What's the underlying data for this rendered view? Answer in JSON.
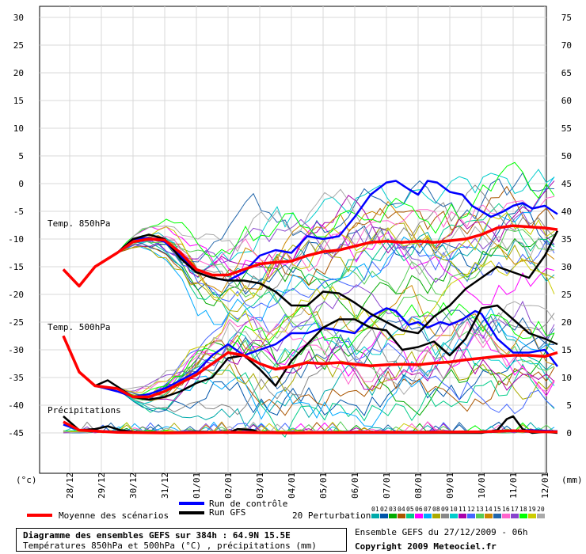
{
  "chart_data": {
    "type": "line",
    "left_axis": {
      "unit_label": "(°c)",
      "ticks": [
        30,
        25,
        20,
        15,
        10,
        5,
        0,
        -5,
        -10,
        -15,
        -20,
        -25,
        -30,
        -35,
        -40,
        -45
      ],
      "ylim": [
        -49,
        33
      ]
    },
    "right_axis": {
      "unit_label": "(mm)",
      "ticks": [
        75,
        70,
        65,
        60,
        55,
        50,
        45,
        40,
        35,
        30,
        25,
        20,
        15,
        10,
        5,
        0
      ]
    },
    "x_ticks": [
      "28/12",
      "29/12",
      "30/12",
      "31/12",
      "01/01",
      "02/01",
      "03/01",
      "04/01",
      "05/01",
      "06/01",
      "07/01",
      "08/01",
      "09/01",
      "10/01",
      "11/01",
      "12/01"
    ],
    "x_day_range": [
      0,
      16
    ],
    "grid": true,
    "panel_labels": {
      "t850": "Temp. 850hPa",
      "t500": "Temp. 500hPa",
      "precip": "Précipitations"
    },
    "series": [
      {
        "name": "Run de contrôle",
        "color": "#0000ff",
        "panel": "t850",
        "x": [
          -0.2,
          0.3,
          0.8,
          1.5,
          2.0,
          2.5,
          3.0,
          3.5,
          4.0,
          4.5,
          5.0,
          5.5,
          6.0,
          6.5,
          7.0,
          7.5,
          8.0,
          8.5,
          9.0,
          9.5,
          10.0,
          10.3,
          10.7,
          11.0,
          11.3,
          11.6,
          12.0,
          12.4,
          12.7,
          13.0,
          13.3,
          13.7,
          14.0,
          14.3,
          14.6,
          15.0,
          15.4
        ],
        "y": [
          -15.5,
          -18.5,
          -15,
          -12.5,
          -10,
          -9.8,
          -10.5,
          -13,
          -16,
          -17,
          -17.5,
          -16,
          -13,
          -12,
          -12.5,
          -9.5,
          -10,
          -9.5,
          -6,
          -2,
          0.2,
          0.5,
          -1,
          -2,
          0.5,
          0.2,
          -1.5,
          -2,
          -4,
          -5,
          -6,
          -5,
          -4,
          -3.5,
          -4.5,
          -4,
          -5.5
        ]
      },
      {
        "name": "Run GFS",
        "color": "#000000",
        "panel": "t850",
        "x": [
          -0.2,
          0.3,
          0.8,
          1.5,
          2.0,
          2.5,
          3.0,
          3.5,
          4.0,
          4.5,
          5.0,
          5.5,
          6.0,
          6.5,
          7.0,
          7.5,
          8.0,
          8.5,
          9.0,
          9.5,
          10.0,
          10.5,
          11.0,
          11.5,
          12.0,
          12.5,
          13.0,
          13.5,
          14.0,
          14.5,
          15.0,
          15.4
        ],
        "y": [
          -15.5,
          -18.5,
          -15,
          -12.5,
          -10,
          -9.2,
          -10,
          -13.5,
          -16,
          -17,
          -17.5,
          -17.5,
          -18,
          -19.5,
          -22,
          -22,
          -19.5,
          -19.8,
          -21.5,
          -23.5,
          -25,
          -26.5,
          -27,
          -24,
          -22,
          -19,
          -17,
          -15,
          -16,
          -17,
          -13,
          -8.5
        ]
      },
      {
        "name": "Moyenne des scénarios",
        "color": "#ff0000",
        "panel": "t850",
        "x": [
          -0.2,
          0.3,
          0.8,
          1.5,
          2.0,
          2.5,
          3.0,
          3.5,
          4.0,
          4.5,
          5.0,
          5.5,
          6.0,
          6.5,
          7.0,
          7.5,
          8.0,
          8.5,
          9.0,
          9.5,
          10.0,
          10.5,
          11.0,
          11.5,
          12.0,
          12.5,
          13.0,
          13.5,
          14.0,
          14.5,
          15.0,
          15.4
        ],
        "y": [
          -15.5,
          -18.5,
          -15,
          -12.5,
          -10.5,
          -10,
          -10.2,
          -12.5,
          -15.5,
          -16.5,
          -16.5,
          -15.5,
          -14.5,
          -14.2,
          -14,
          -13,
          -12.3,
          -12,
          -11.3,
          -10.6,
          -10.4,
          -10.6,
          -10.4,
          -10.6,
          -10.3,
          -10,
          -9.2,
          -8,
          -7.6,
          -7.8,
          -8,
          -8.3
        ]
      },
      {
        "name": "Run de contrôle",
        "color": "#0000ff",
        "panel": "t500",
        "x": [
          -0.2,
          0.3,
          0.8,
          1.5,
          2.0,
          2.5,
          3.0,
          3.5,
          4.0,
          4.5,
          5.0,
          5.5,
          6.0,
          6.5,
          7.0,
          7.5,
          8.0,
          8.5,
          9.0,
          9.5,
          10.0,
          10.3,
          10.7,
          11.0,
          11.3,
          11.7,
          12.0,
          12.4,
          12.8,
          13.0,
          13.5,
          14.0,
          14.5,
          15.0,
          15.4
        ],
        "y": [
          -27.5,
          -34,
          -36.5,
          -37.5,
          -38.5,
          -38,
          -37,
          -35.5,
          -34,
          -31,
          -29,
          -31,
          -30,
          -29,
          -27,
          -27,
          -26,
          -26.5,
          -27,
          -24,
          -22.5,
          -23,
          -25.5,
          -25,
          -26,
          -25,
          -25.5,
          -24.5,
          -23,
          -23.5,
          -28,
          -30.5,
          -30.5,
          -30,
          -33
        ]
      },
      {
        "name": "Run GFS",
        "color": "#000000",
        "panel": "t500",
        "x": [
          -0.2,
          0.3,
          0.8,
          1.2,
          1.6,
          2.0,
          2.5,
          3.0,
          3.5,
          4.0,
          4.5,
          5.0,
          5.5,
          6.0,
          6.5,
          7.0,
          7.5,
          8.0,
          8.5,
          9.0,
          9.5,
          10.0,
          10.5,
          11.0,
          11.5,
          12.0,
          12.5,
          13.0,
          13.5,
          14.0,
          14.5,
          15.0,
          15.4
        ],
        "y": [
          -27.5,
          -34,
          -36.5,
          -35.5,
          -37,
          -38.5,
          -39,
          -38.5,
          -37.5,
          -36,
          -35,
          -31.5,
          -31,
          -33.5,
          -36.5,
          -32,
          -29,
          -26,
          -24.5,
          -24.5,
          -26,
          -26.5,
          -30,
          -29.5,
          -28.5,
          -31,
          -28,
          -22.5,
          -22,
          -24.5,
          -27,
          -28,
          -29
        ]
      },
      {
        "name": "Moyenne des scénarios",
        "color": "#ff0000",
        "panel": "t500",
        "x": [
          -0.2,
          0.3,
          0.8,
          1.5,
          2.0,
          2.5,
          3.0,
          3.5,
          4.0,
          4.5,
          5.0,
          5.5,
          6.0,
          6.5,
          7.0,
          7.5,
          8.0,
          8.5,
          9.0,
          9.5,
          10.0,
          10.5,
          11.0,
          11.5,
          12.0,
          12.5,
          13.0,
          13.5,
          14.0,
          14.5,
          15.0,
          15.4
        ],
        "y": [
          -27.5,
          -34,
          -36.5,
          -37,
          -38.5,
          -38.5,
          -37.5,
          -36,
          -34.5,
          -32.5,
          -30.5,
          -31,
          -32.5,
          -33.5,
          -33,
          -32.3,
          -32.5,
          -32.3,
          -32.6,
          -32.9,
          -32.7,
          -32.6,
          -32.7,
          -32.4,
          -32.2,
          -31.8,
          -31.5,
          -31.2,
          -31,
          -31,
          -31.2,
          -30.5
        ]
      },
      {
        "name": "Run de contrôle",
        "color": "#0000ff",
        "panel": "precip",
        "x": [
          -0.2,
          0.3,
          1.5,
          3.0,
          5.0,
          7.0,
          9.0,
          11.0,
          13.0,
          14.5,
          15.4
        ],
        "y": [
          -43.5,
          -44.5,
          -44.8,
          -45,
          -44.8,
          -45,
          -45,
          -45,
          -44.9,
          -44.5,
          -44.7
        ]
      },
      {
        "name": "Run GFS",
        "color": "#000000",
        "panel": "precip",
        "x": [
          -0.2,
          0.3,
          0.8,
          1.2,
          1.6,
          2.0,
          3.0,
          4.0,
          5.0,
          5.3,
          5.8,
          6.0,
          7.0,
          8.0,
          9.0,
          10.0,
          11.0,
          12.0,
          13.0,
          13.5,
          13.8,
          14.0,
          14.3,
          14.6,
          15.0,
          15.4
        ],
        "y": [
          -42,
          -44.5,
          -44.3,
          -43.8,
          -44.5,
          -44.8,
          -45,
          -44.8,
          -45,
          -44.3,
          -44.5,
          -45,
          -45,
          -45,
          -45,
          -45,
          -45,
          -45,
          -45,
          -44.5,
          -42.5,
          -42,
          -44.3,
          -45,
          -44.8,
          -45
        ]
      },
      {
        "name": "Moyenne des scénarios",
        "color": "#ff0000",
        "panel": "precip",
        "x": [
          -0.2,
          0.3,
          1.5,
          3.0,
          5.0,
          7.0,
          9.0,
          11.0,
          13.0,
          14.0,
          15.0,
          15.4
        ],
        "y": [
          -43,
          -44.5,
          -44.9,
          -45,
          -44.9,
          -45,
          -44.9,
          -44.9,
          -44.8,
          -44.6,
          -44.8,
          -44.8
        ]
      }
    ],
    "perturbations": {
      "count": 20,
      "label": "20 Perturbations",
      "codes": [
        "01",
        "02",
        "03",
        "04",
        "05",
        "06",
        "07",
        "08",
        "09",
        "10",
        "11",
        "12",
        "13",
        "14",
        "15",
        "16",
        "17",
        "18",
        "19",
        "20"
      ],
      "colors": [
        "#00aaaa",
        "#0055aa",
        "#00aa00",
        "#aa5500",
        "#00cc88",
        "#ff00ff",
        "#00aaff",
        "#aaaa00",
        "#888888",
        "#00cccc",
        "#aa00aa",
        "#4466ff",
        "#55cc55",
        "#cc8800",
        "#2266aa",
        "#ff66cc",
        "#8844cc",
        "#00ff00",
        "#cccc00",
        "#aaaaaa"
      ]
    }
  },
  "legend": {
    "control": "Run de contrôle",
    "gfs": "Run GFS",
    "mean": "Moyenne des scénarios",
    "perturbations": "20 Perturbations",
    "colors": {
      "control": "#0000ff",
      "gfs": "#000000",
      "mean": "#ff0000"
    }
  },
  "info": {
    "title": "Diagramme des ensembles GEFS sur 384h : 64.9N 15.5E",
    "subtitle": "Températures 850hPa et 500hPa (°C) , précipitations (mm)",
    "run": "Ensemble GEFS du 27/12/2009 - 06h",
    "copyright": "Copyright 2009 Meteociel.fr"
  }
}
